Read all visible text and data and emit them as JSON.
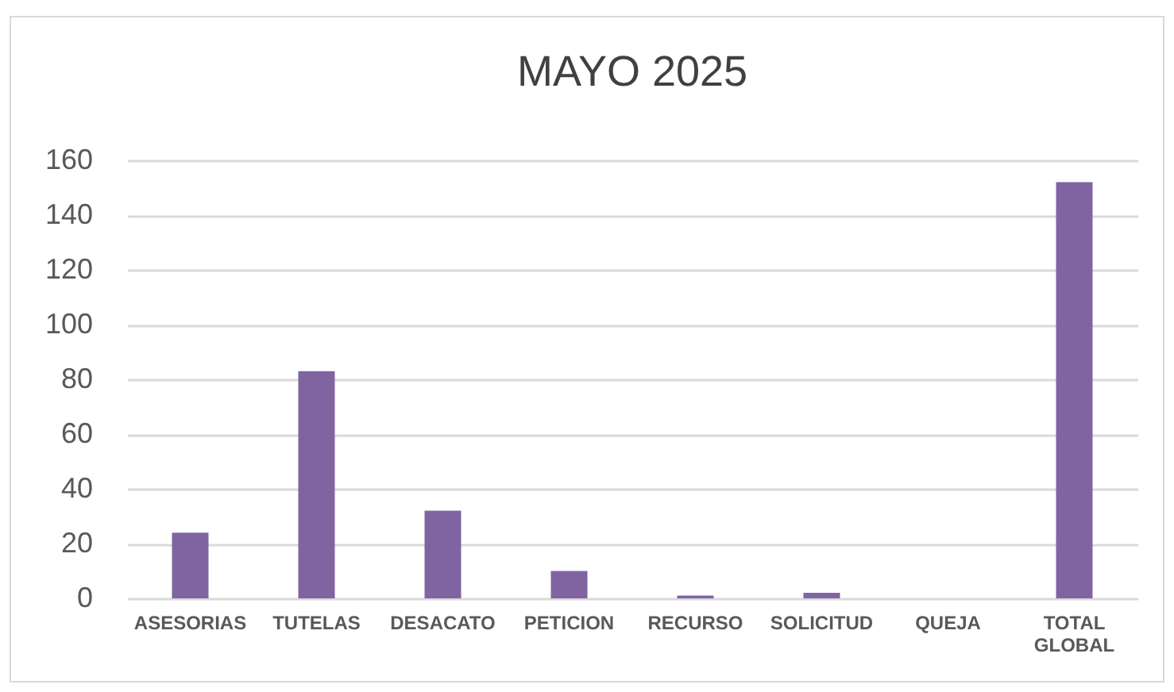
{
  "chart_data": {
    "type": "bar",
    "title": "MAYO 2025",
    "categories": [
      "ASESORIAS",
      "TUTELAS",
      "DESACATO",
      "PETICION",
      "RECURSO",
      "SOLICITUD",
      "QUEJA",
      "TOTAL GLOBAL"
    ],
    "values": [
      24,
      83,
      32,
      10,
      1,
      2,
      0,
      152
    ],
    "color": "#8064a2",
    "ylim": [
      0,
      160
    ],
    "yticks": [
      0,
      20,
      40,
      60,
      80,
      100,
      120,
      140,
      160
    ],
    "grid": "y"
  }
}
